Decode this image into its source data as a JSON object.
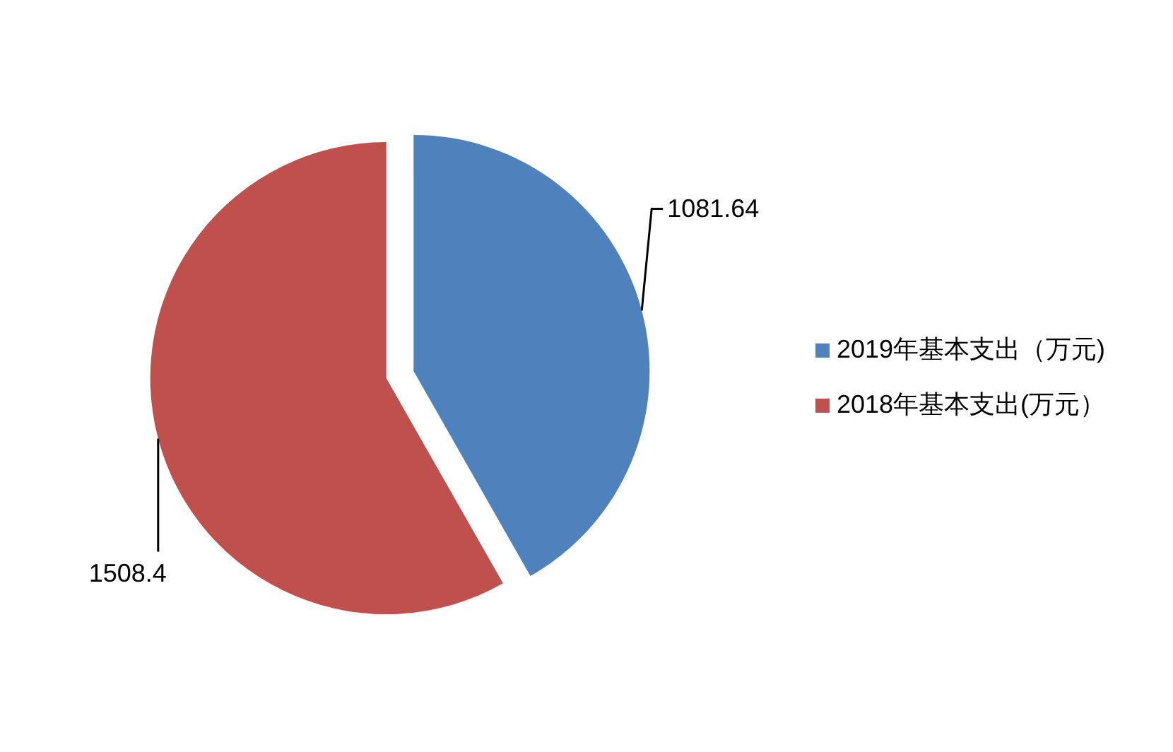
{
  "chart_data": {
    "type": "pie",
    "categories": [
      "2019年基本支出（万元)",
      "2018年基本支出(万元）"
    ],
    "values": [
      1081.64,
      1508.4
    ],
    "colors": [
      "#4f81bd",
      "#c0504d"
    ],
    "legend": "right",
    "data_labels": true
  }
}
